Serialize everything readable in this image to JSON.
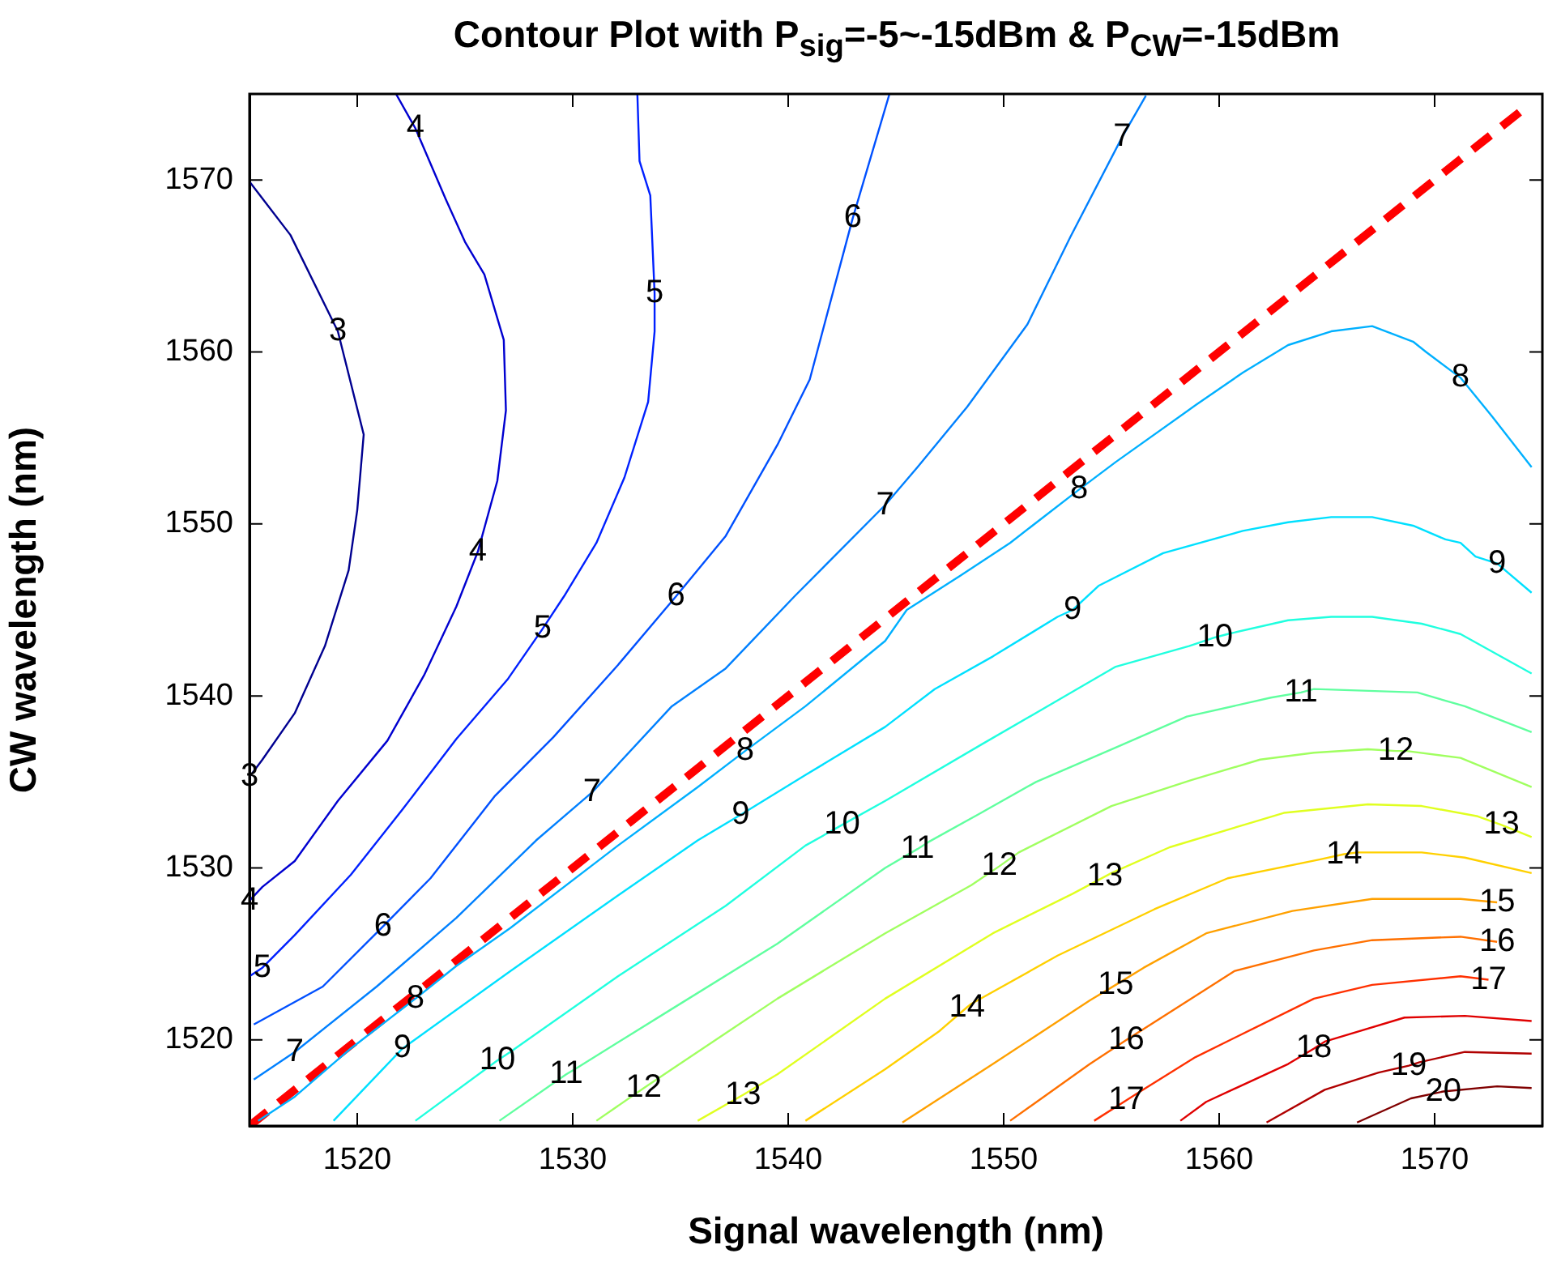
{
  "chart_data": {
    "type": "line",
    "title": "Contour Plot with P$_{sig}$=-5~-15dBm & P$_{CW}$=-15dBm",
    "xlabel": "Signal wavelength (nm)",
    "ylabel": "CW wavelength (nm)",
    "xlim": [
      1515,
      1575
    ],
    "ylim": [
      1515,
      1575
    ],
    "xticks": [
      1520,
      1530,
      1540,
      1550,
      1560,
      1570
    ],
    "yticks": [
      1520,
      1530,
      1540,
      1550,
      1560,
      1570
    ],
    "grid": false,
    "legend": false,
    "marker": "none",
    "line_style": "solid",
    "series": [
      {
        "color": "#000090",
        "x": [
          1515.0,
          1516.9,
          1519.1,
          1520.3,
          1520.0,
          1519.6,
          1518.5,
          1517.1,
          1515.6,
          1515.0
        ],
        "values": [
          1569.9,
          1566.8,
          1561.2,
          1555.2,
          1550.8,
          1547.3,
          1542.9,
          1539.0,
          1536.3,
          1535.3
        ]
      },
      {
        "color": "#0000d0",
        "x": [
          1521.8,
          1522.7,
          1524.1,
          1525.0,
          1525.9,
          1526.8,
          1526.9,
          1526.5,
          1525.6,
          1524.6,
          1523.1,
          1521.4,
          1519.1,
          1517.1,
          1515.6,
          1515.0
        ],
        "values": [
          1575.0,
          1573.0,
          1568.9,
          1566.4,
          1564.5,
          1560.7,
          1556.6,
          1552.5,
          1548.4,
          1545.2,
          1541.2,
          1537.4,
          1533.9,
          1530.4,
          1528.9,
          1528.1
        ]
      },
      {
        "color": "#0020ff",
        "x": [
          1533.0,
          1533.1,
          1533.6,
          1533.8,
          1533.8,
          1533.5,
          1532.4,
          1531.1,
          1529.6,
          1528.6,
          1527.0,
          1524.6,
          1522.1,
          1519.7,
          1517.1,
          1515.6,
          1515.0
        ],
        "values": [
          1575.0,
          1571.1,
          1569.1,
          1563.4,
          1561.2,
          1557.1,
          1552.7,
          1548.9,
          1545.8,
          1543.9,
          1541.0,
          1537.5,
          1533.4,
          1529.6,
          1526.1,
          1524.2,
          1523.7
        ]
      },
      {
        "color": "#0050ff",
        "x": [
          1544.7,
          1543.0,
          1541.0,
          1539.5,
          1537.1,
          1534.8,
          1532.1,
          1529.1,
          1526.4,
          1523.4,
          1521.2,
          1518.4,
          1515.2
        ],
        "values": [
          1575.0,
          1567.8,
          1558.4,
          1554.6,
          1549.3,
          1545.8,
          1541.8,
          1537.6,
          1534.2,
          1529.4,
          1526.6,
          1523.1,
          1520.9
        ]
      },
      {
        "color": "#0080ff",
        "x": [
          1556.6,
          1555.5,
          1553.1,
          1551.1,
          1548.3,
          1546.0,
          1544.5,
          1540.3,
          1537.1,
          1534.6,
          1530.9,
          1528.3,
          1524.6,
          1520.9,
          1517.1,
          1515.2
        ],
        "values": [
          1574.9,
          1572.5,
          1566.7,
          1561.6,
          1556.8,
          1553.3,
          1551.1,
          1545.8,
          1541.6,
          1539.4,
          1534.4,
          1531.6,
          1527.1,
          1523.1,
          1519.3,
          1517.7
        ]
      },
      {
        "color": "#00b0ff",
        "x": [
          1574.5,
          1572.7,
          1571.2,
          1569.6,
          1569.0,
          1567.1,
          1565.2,
          1563.2,
          1561.1,
          1558.9,
          1555.2,
          1553.5,
          1550.3,
          1548.0,
          1545.5,
          1544.5,
          1540.8,
          1538.0,
          1535.8,
          1532.1,
          1527.1,
          1524.6,
          1522.7,
          1519.7,
          1517.1,
          1515.4
        ],
        "values": [
          1553.3,
          1556.2,
          1558.5,
          1560.0,
          1560.6,
          1561.5,
          1561.2,
          1560.4,
          1558.8,
          1556.9,
          1553.6,
          1552.0,
          1548.9,
          1547.0,
          1545.0,
          1543.2,
          1539.4,
          1536.8,
          1534.7,
          1531.3,
          1526.5,
          1524.3,
          1522.4,
          1519.5,
          1516.7,
          1515.3
        ]
      },
      {
        "color": "#00e0ff",
        "x": [
          1574.5,
          1572.9,
          1571.9,
          1571.2,
          1570.5,
          1569.0,
          1567.1,
          1565.2,
          1563.2,
          1561.1,
          1557.4,
          1554.4,
          1553.2,
          1552.5,
          1549.5,
          1546.8,
          1544.5,
          1540.8,
          1537.8,
          1535.8,
          1532.1,
          1527.1,
          1522.1,
          1518.9
        ],
        "values": [
          1546.0,
          1547.7,
          1548.1,
          1548.9,
          1549.1,
          1549.9,
          1550.4,
          1550.4,
          1550.1,
          1549.6,
          1548.3,
          1546.4,
          1545.0,
          1544.6,
          1542.3,
          1540.4,
          1538.2,
          1535.4,
          1533.1,
          1531.6,
          1528.4,
          1524.0,
          1519.5,
          1515.3
        ]
      },
      {
        "color": "#20ffdf",
        "x": [
          1574.5,
          1571.2,
          1569.4,
          1567.1,
          1565.2,
          1563.2,
          1560.4,
          1559.8,
          1558.6,
          1555.2,
          1553.0,
          1549.0,
          1544.5,
          1542.5,
          1540.8,
          1537.1,
          1532.1,
          1527.1,
          1526.5,
          1522.7
        ],
        "values": [
          1541.3,
          1543.6,
          1544.2,
          1544.6,
          1544.6,
          1544.4,
          1543.6,
          1543.4,
          1542.9,
          1541.7,
          1540.1,
          1537.2,
          1533.9,
          1532.5,
          1531.3,
          1527.8,
          1523.7,
          1519.3,
          1518.8,
          1515.3
        ]
      },
      {
        "color": "#60ff9f",
        "x": [
          1574.5,
          1571.4,
          1569.2,
          1564.4,
          1563.8,
          1562.4,
          1558.5,
          1555.2,
          1551.5,
          1548.8,
          1546.5,
          1546.0,
          1544.5,
          1539.5,
          1534.6,
          1530.1,
          1529.7,
          1526.6
        ],
        "values": [
          1537.9,
          1539.4,
          1540.2,
          1540.4,
          1540.2,
          1539.9,
          1538.8,
          1537.0,
          1535.0,
          1533.1,
          1531.5,
          1531.1,
          1530.0,
          1525.6,
          1521.8,
          1518.3,
          1518.0,
          1515.3
        ]
      },
      {
        "color": "#a0ff60",
        "x": [
          1574.5,
          1571.2,
          1568.7,
          1568.2,
          1566.9,
          1564.4,
          1561.9,
          1558.7,
          1555.0,
          1550.7,
          1549.8,
          1548.5,
          1544.5,
          1539.5,
          1534.6,
          1533.3,
          1531.1
        ],
        "values": [
          1534.7,
          1536.4,
          1536.8,
          1536.8,
          1536.9,
          1536.7,
          1536.3,
          1535.1,
          1533.6,
          1530.9,
          1530.1,
          1529.0,
          1526.2,
          1522.4,
          1518.3,
          1517.2,
          1515.3
        ]
      },
      {
        "color": "#e0ff20",
        "x": [
          1574.5,
          1573.1,
          1572.0,
          1569.4,
          1566.9,
          1563.0,
          1557.7,
          1555.0,
          1554.7,
          1553.2,
          1549.5,
          1544.5,
          1539.5,
          1537.9,
          1535.8
        ],
        "values": [
          1531.8,
          1532.5,
          1533.0,
          1533.6,
          1533.7,
          1533.2,
          1531.2,
          1529.7,
          1529.5,
          1528.5,
          1526.2,
          1522.4,
          1518.0,
          1516.8,
          1515.3
        ]
      },
      {
        "color": "#ffd000",
        "x": [
          1574.5,
          1571.4,
          1569.4,
          1566.4,
          1565.8,
          1564.7,
          1560.4,
          1557.0,
          1552.5,
          1548.5,
          1548.3,
          1547.0,
          1544.5,
          1540.8
        ],
        "values": [
          1529.7,
          1530.6,
          1530.9,
          1530.9,
          1530.8,
          1530.5,
          1529.4,
          1527.6,
          1524.9,
          1522.1,
          1521.9,
          1520.5,
          1518.3,
          1515.3
        ]
      },
      {
        "color": "#ffa000",
        "x": [
          1572.9,
          1571.2,
          1567.1,
          1563.4,
          1559.4,
          1556.5,
          1555.2,
          1554.0,
          1549.5,
          1545.3
        ],
        "values": [
          1528.0,
          1528.2,
          1528.2,
          1527.5,
          1526.2,
          1524.2,
          1523.2,
          1522.3,
          1518.6,
          1515.2
        ]
      },
      {
        "color": "#ff7000",
        "x": [
          1572.9,
          1571.2,
          1567.1,
          1564.4,
          1560.7,
          1556.2,
          1555.7,
          1554.0,
          1550.3
        ],
        "values": [
          1525.7,
          1526.0,
          1525.8,
          1525.2,
          1524.0,
          1520.4,
          1520.0,
          1518.6,
          1515.3
        ]
      },
      {
        "color": "#ff3000",
        "x": [
          1572.5,
          1571.2,
          1567.1,
          1564.4,
          1558.9,
          1556.2,
          1555.7,
          1554.2
        ],
        "values": [
          1523.5,
          1523.7,
          1523.2,
          1522.4,
          1519.0,
          1516.9,
          1516.5,
          1515.3
        ]
      },
      {
        "color": "#e00000",
        "x": [
          1574.5,
          1571.4,
          1568.6,
          1564.9,
          1564.4,
          1563.2,
          1559.4,
          1558.2
        ],
        "values": [
          1521.1,
          1521.4,
          1521.3,
          1519.9,
          1519.5,
          1518.6,
          1516.4,
          1515.3
        ]
      },
      {
        "color": "#b00000",
        "x": [
          1574.5,
          1571.4,
          1569.3,
          1568.8,
          1567.4,
          1564.9,
          1562.2
        ],
        "values": [
          1519.2,
          1519.3,
          1518.7,
          1518.5,
          1518.1,
          1517.1,
          1515.2
        ]
      },
      {
        "color": "#800000",
        "x": [
          1574.5,
          1572.9,
          1570.4,
          1568.9,
          1566.4
        ],
        "values": [
          1517.2,
          1517.3,
          1517.0,
          1516.6,
          1515.2
        ]
      },
      {
        "color": "#ff0000",
        "line_style": "dashed",
        "x": [
          1515,
          1574
        ],
        "values": [
          1515,
          1574
        ]
      }
    ],
    "annotations": [
      {
        "text": "3",
        "x": 1519.1,
        "y": 1561.2
      },
      {
        "text": "3",
        "x": 1515.0,
        "y": 1535.3
      },
      {
        "text": "4",
        "x": 1522.7,
        "y": 1573.0
      },
      {
        "text": "4",
        "x": 1525.6,
        "y": 1548.4
      },
      {
        "text": "4",
        "x": 1515.0,
        "y": 1528.1
      },
      {
        "text": "5",
        "x": 1533.8,
        "y": 1563.4
      },
      {
        "text": "5",
        "x": 1528.6,
        "y": 1543.9
      },
      {
        "text": "5",
        "x": 1515.6,
        "y": 1524.2
      },
      {
        "text": "6",
        "x": 1543.0,
        "y": 1567.8
      },
      {
        "text": "6",
        "x": 1534.8,
        "y": 1545.8
      },
      {
        "text": "6",
        "x": 1521.2,
        "y": 1526.6
      },
      {
        "text": "7",
        "x": 1555.5,
        "y": 1572.5
      },
      {
        "text": "7",
        "x": 1544.5,
        "y": 1551.1
      },
      {
        "text": "7",
        "x": 1530.9,
        "y": 1534.4
      },
      {
        "text": "7",
        "x": 1517.1,
        "y": 1519.3
      },
      {
        "text": "8",
        "x": 1571.2,
        "y": 1558.5
      },
      {
        "text": "8",
        "x": 1553.5,
        "y": 1552.0
      },
      {
        "text": "8",
        "x": 1538.0,
        "y": 1536.8
      },
      {
        "text": "8",
        "x": 1522.7,
        "y": 1522.4
      },
      {
        "text": "9",
        "x": 1572.9,
        "y": 1547.7
      },
      {
        "text": "9",
        "x": 1553.2,
        "y": 1545.0
      },
      {
        "text": "9",
        "x": 1537.8,
        "y": 1533.1
      },
      {
        "text": "9",
        "x": 1522.1,
        "y": 1519.5
      },
      {
        "text": "10",
        "x": 1559.8,
        "y": 1543.4
      },
      {
        "text": "10",
        "x": 1542.5,
        "y": 1532.5
      },
      {
        "text": "10",
        "x": 1526.5,
        "y": 1518.8
      },
      {
        "text": "11",
        "x": 1563.8,
        "y": 1540.2
      },
      {
        "text": "11",
        "x": 1546.0,
        "y": 1531.1
      },
      {
        "text": "11",
        "x": 1529.7,
        "y": 1518.0
      },
      {
        "text": "12",
        "x": 1568.2,
        "y": 1536.8
      },
      {
        "text": "12",
        "x": 1549.8,
        "y": 1530.1
      },
      {
        "text": "12",
        "x": 1533.3,
        "y": 1517.2
      },
      {
        "text": "13",
        "x": 1573.1,
        "y": 1532.5
      },
      {
        "text": "13",
        "x": 1554.7,
        "y": 1529.5
      },
      {
        "text": "13",
        "x": 1537.9,
        "y": 1516.8
      },
      {
        "text": "14",
        "x": 1565.8,
        "y": 1530.8
      },
      {
        "text": "14",
        "x": 1548.3,
        "y": 1521.9
      },
      {
        "text": "15",
        "x": 1572.9,
        "y": 1528.0
      },
      {
        "text": "15",
        "x": 1555.2,
        "y": 1523.2
      },
      {
        "text": "16",
        "x": 1572.9,
        "y": 1525.7
      },
      {
        "text": "16",
        "x": 1555.7,
        "y": 1520.0
      },
      {
        "text": "17",
        "x": 1572.5,
        "y": 1523.5
      },
      {
        "text": "17",
        "x": 1555.7,
        "y": 1516.5
      },
      {
        "text": "18",
        "x": 1564.4,
        "y": 1519.5
      },
      {
        "text": "19",
        "x": 1568.8,
        "y": 1518.5
      },
      {
        "text": "20",
        "x": 1570.4,
        "y": 1517.0
      }
    ]
  }
}
